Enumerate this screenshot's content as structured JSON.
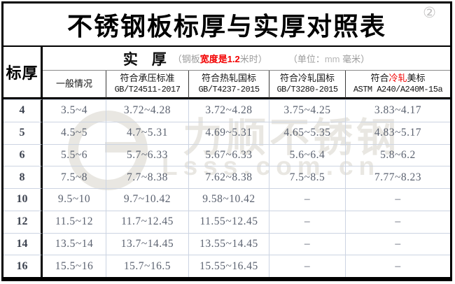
{
  "title": {
    "text": "不锈钢板标厚与实厚对照表",
    "badge": "②"
  },
  "header": {
    "row_label": "标厚",
    "actual_title": "实 厚",
    "note_prefix": "（钢板",
    "note_highlight": "宽度是1.2",
    "note_suffix": "米时）",
    "unit_prefix": "（单位：",
    "unit_mm": "mm",
    "unit_suffix": " 毫米）"
  },
  "table": {
    "columns": [
      {
        "pre": "一般情况",
        "red": "",
        "post": "",
        "code": ""
      },
      {
        "pre": "符合承压标准",
        "red": "",
        "post": "",
        "code": "GB/T24511-2017"
      },
      {
        "pre": "符合热轧国标",
        "red": "",
        "post": "",
        "code": "GB/T4237-2015"
      },
      {
        "pre": "符合冷轧国标",
        "red": "",
        "post": "",
        "code": "GB/T3280-2015"
      },
      {
        "pre": "符合",
        "red": "冷轧",
        "post": "美标",
        "code": "ASTM A240/A240M-15a"
      }
    ],
    "rows": [
      {
        "t": "4",
        "v": [
          "3.5~4",
          "3.72~4.28",
          "3.72~4.28",
          "3.75~4.25",
          "3.83~4.17"
        ]
      },
      {
        "t": "5",
        "v": [
          "4.5~5",
          "4.7~5.31",
          "4.69~5.31",
          "4.65~5.35",
          "4.83~5.17"
        ]
      },
      {
        "t": "6",
        "v": [
          "5.5~6",
          "5.7~6.33",
          "5.67~6.33",
          "5.6~6.4",
          "5.8~6.2"
        ]
      },
      {
        "t": "8",
        "v": [
          "7.5~8",
          "7.7~8.38",
          "7.62~8.38",
          "7.5~8.5",
          "7.77~8.23"
        ]
      },
      {
        "t": "10",
        "v": [
          "9.5~10",
          "9.7~10.42",
          "9.58~10.42",
          "–",
          "–"
        ]
      },
      {
        "t": "12",
        "v": [
          "11.5~12",
          "11.7~12.45",
          "11.55~12.45",
          "–",
          "–"
        ]
      },
      {
        "t": "14",
        "v": [
          "13.5~14",
          "13.7~14.45",
          "13.55~14.45",
          "–",
          "–"
        ]
      },
      {
        "t": "16",
        "v": [
          "15.5~16",
          "15.7~16.5",
          "15.55~16.45",
          "–",
          "–"
        ]
      }
    ]
  },
  "watermark": {
    "brand": "力顺不锈钢",
    "domain": "Lsss.com.cn"
  },
  "colors": {
    "accent_red": "#f20000",
    "grid_line": "#ccd4e2",
    "data_text": "#5b6270",
    "muted": "#9c9c9c",
    "watermark": "#e9e7e2"
  }
}
